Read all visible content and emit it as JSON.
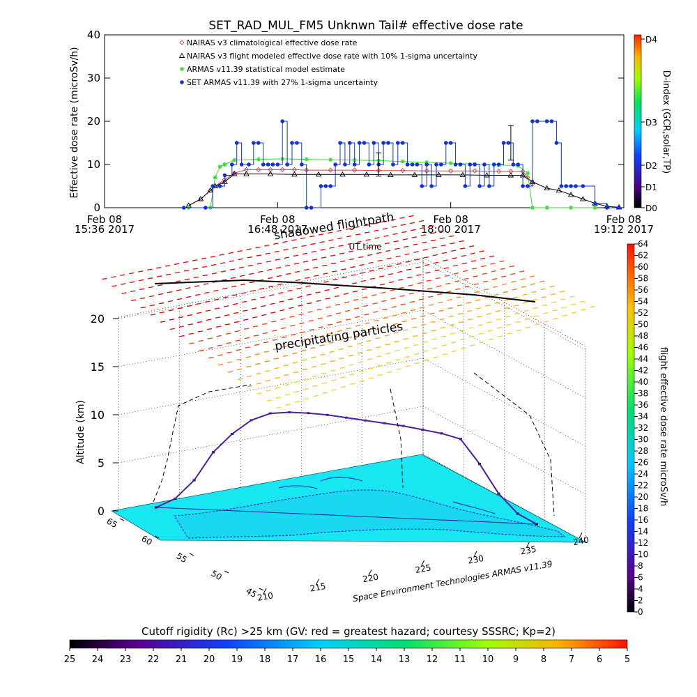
{
  "header": {
    "title": "SET_RAD_MUL_FM5 Unknwn Tail#  effective dose rate"
  },
  "colors": {
    "nairas_climatological": "#d04040",
    "nairas_flight": "#000000",
    "armas_statistical": "#33dd33",
    "set_armas": "#1030d8",
    "map_ocean": "#18e6f0",
    "map_land_edge": "#1040c8"
  },
  "chart_data": [
    {
      "type": "line",
      "title": "SET_RAD_MUL_FM5 Unknwn Tail#  effective dose rate",
      "xlabel": "UT time",
      "ylabel": "Effective dose rate (microSv/h)",
      "xlim": [
        "15:36",
        "19:12"
      ],
      "ylim": [
        0,
        40
      ],
      "yticks": [
        0,
        10,
        20,
        30,
        40
      ],
      "xticks": [
        {
          "line1": "Feb 08",
          "line2": "15:36 2017"
        },
        {
          "line1": "Feb 08",
          "line2": "16:48 2017"
        },
        {
          "line1": "Feb 08",
          "line2": "18:00 2017"
        },
        {
          "line1": "Feb 08",
          "line2": "19:12 2017"
        }
      ],
      "legend_position": "top-left",
      "series": [
        {
          "name": "NAIRAS v3 climatological effective dose rate",
          "marker": "diamond",
          "color": "#d04040",
          "x": [
            "16:11",
            "16:16",
            "16:20",
            "16:22",
            "16:26",
            "16:30",
            "16:35",
            "16:40",
            "16:45",
            "16:50",
            "16:55",
            "17:00",
            "17:10",
            "17:20",
            "17:30",
            "17:40",
            "17:50",
            "18:00",
            "18:10",
            "18:20",
            "18:25",
            "18:30",
            "18:32",
            "18:34"
          ],
          "y": [
            0.5,
            2,
            4,
            5,
            6.5,
            8,
            8.8,
            8.8,
            8.8,
            8.8,
            8.8,
            8.7,
            8.7,
            8.7,
            8.6,
            8.6,
            8.5,
            8.5,
            8.5,
            8.4,
            8.4,
            8.4,
            7,
            5.5
          ]
        },
        {
          "name": "NAIRAS v3 flight modeled effective dose rate with 10% 1-sigma uncertainty",
          "marker": "triangle",
          "color": "#000000",
          "x": [
            "16:11",
            "16:16",
            "16:20",
            "16:22",
            "16:26",
            "16:30",
            "16:35",
            "16:45",
            "16:55",
            "17:05",
            "17:15",
            "17:25",
            "17:35",
            "17:45",
            "17:55",
            "18:05",
            "18:15",
            "18:25",
            "18:30",
            "18:34",
            "18:40",
            "18:45",
            "18:50",
            "18:55",
            "19:00",
            "19:05",
            "19:10"
          ],
          "y": [
            0.5,
            2,
            4,
            5,
            6,
            7.8,
            7.8,
            7.8,
            7.7,
            7.7,
            7.7,
            7.7,
            7.6,
            7.6,
            7.6,
            7.6,
            7.5,
            7.5,
            7.5,
            6,
            4.5,
            4,
            3,
            2,
            1,
            0.3,
            0.1
          ]
        },
        {
          "name": "ARMAS v11.39 statistical model estimate",
          "marker": "asterisk",
          "color": "#33dd33",
          "x": [
            "16:11",
            "16:20",
            "16:22",
            "16:24",
            "16:26",
            "16:30",
            "16:40",
            "16:50",
            "17:00",
            "17:10",
            "17:20",
            "17:30",
            "17:40",
            "17:50",
            "18:00",
            "18:10",
            "18:20",
            "18:28",
            "18:32",
            "18:34",
            "18:40",
            "18:50",
            "19:00"
          ],
          "y": [
            0,
            0,
            7,
            9.5,
            10,
            11,
            11.2,
            11.3,
            11.2,
            11.1,
            11,
            10.9,
            10.7,
            10.5,
            10.3,
            10.1,
            9.9,
            9.7,
            8,
            0,
            0,
            0,
            0
          ]
        },
        {
          "name": "SET ARMAS v11.39 with 27% 1-sigma uncertainty",
          "marker": "dot",
          "color": "#1030d8",
          "x": [
            "16:09",
            "16:18",
            "16:21",
            "16:24",
            "16:26",
            "16:29",
            "16:31",
            "16:33",
            "16:36",
            "16:38",
            "16:40",
            "16:42",
            "16:44",
            "16:46",
            "16:48",
            "16:50",
            "16:52",
            "16:54",
            "16:56",
            "16:58",
            "17:00",
            "17:02",
            "17:06",
            "17:08",
            "17:10",
            "17:12",
            "17:14",
            "17:16",
            "17:18",
            "17:20",
            "17:22",
            "17:24",
            "17:26",
            "17:28",
            "17:30",
            "17:32",
            "17:34",
            "17:36",
            "17:38",
            "17:40",
            "17:42",
            "17:44",
            "17:46",
            "17:48",
            "17:50",
            "17:52",
            "17:54",
            "17:56",
            "17:58",
            "18:00",
            "18:02",
            "18:04",
            "18:06",
            "18:08",
            "18:10",
            "18:12",
            "18:14",
            "18:16",
            "18:18",
            "18:20",
            "18:22",
            "18:24",
            "18:26",
            "18:28",
            "18:30",
            "18:32",
            "18:34",
            "18:36",
            "18:40",
            "18:42",
            "18:44",
            "18:46",
            "18:48",
            "18:50",
            "18:52",
            "18:55",
            "19:00",
            "19:05",
            "19:10"
          ],
          "y": [
            0,
            0,
            5,
            5,
            7.5,
            10,
            15,
            10,
            10,
            15,
            15,
            10,
            10,
            10,
            10,
            20,
            10,
            15,
            15,
            10,
            0,
            0,
            5,
            5,
            5,
            10,
            15,
            10,
            15,
            10,
            15,
            15,
            10,
            15,
            10,
            15,
            15,
            10,
            15,
            15,
            10,
            10,
            10,
            5,
            10,
            5,
            10,
            10,
            15,
            15,
            10,
            10,
            5,
            10,
            10,
            5,
            10,
            5,
            10,
            10,
            15,
            15,
            10,
            10,
            5,
            5,
            20,
            20,
            20,
            20,
            15,
            5,
            5,
            5,
            5,
            5,
            1,
            0,
            0
          ]
        }
      ],
      "error_bars": [
        {
          "x": "17:30",
          "y": 10,
          "low": 7.3,
          "high": 12.7
        },
        {
          "x": "18:25",
          "y": 15,
          "low": 11,
          "high": 19
        }
      ],
      "colorbar": {
        "label": "D-index (GCR,solar,TP)",
        "ticks": [
          "D0",
          "D1",
          "D2",
          "D3",
          "D4"
        ],
        "position": "right"
      }
    },
    {
      "type": "surface3d",
      "title": "shadowed flightpath",
      "zlabel": "Altitude (km)",
      "zticks": [
        0,
        5,
        10,
        15,
        20
      ],
      "xlabel": "Space Environment Technologies ARMAS v11.39",
      "xticks": [
        210,
        215,
        220,
        225,
        230,
        235,
        240
      ],
      "yticks": [
        45,
        50,
        55,
        60,
        65
      ],
      "annotations": [
        "precipitating particles",
        "shadowed flightpath"
      ],
      "flight_altitude_km": [
        0,
        1,
        3,
        6,
        8,
        9.5,
        10.3,
        10.5,
        10.5,
        10.4,
        10.2,
        10,
        9.8,
        9.6,
        9.3,
        9.0,
        8.5,
        6,
        3,
        1,
        0
      ],
      "colorbar": {
        "label": "flight effective dose rate microSv/h",
        "ticks": [
          0,
          2,
          4,
          6,
          8,
          10,
          12,
          14,
          16,
          18,
          20,
          22,
          24,
          26,
          28,
          30,
          32,
          34,
          36,
          38,
          40,
          42,
          44,
          46,
          48,
          50,
          52,
          54,
          56,
          58,
          60,
          62,
          64
        ],
        "range": [
          0,
          64
        ],
        "position": "right"
      }
    },
    {
      "type": "colorbar",
      "title": "Cutoff rigidity (Rc) >25 km (GV: red = greatest hazard; courtesy SSSRC; Kp=2)",
      "ticks": [
        25,
        24,
        23,
        22,
        21,
        20,
        19,
        18,
        17,
        16,
        15,
        14,
        13,
        12,
        11,
        10,
        9,
        8,
        7,
        6,
        5
      ],
      "position": "bottom"
    }
  ]
}
